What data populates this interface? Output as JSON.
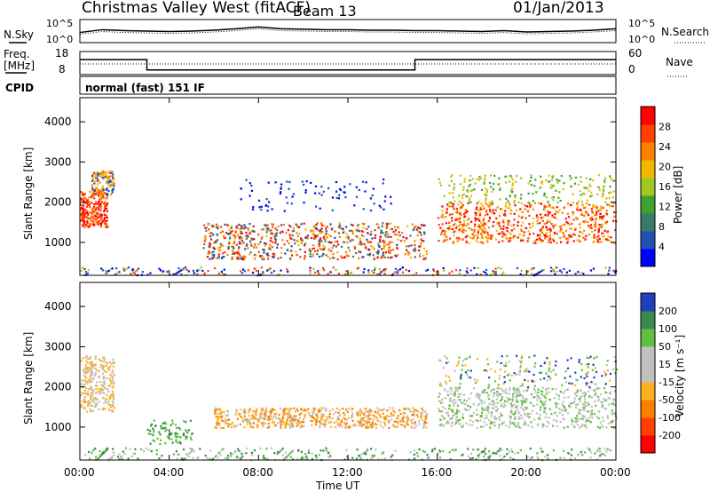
{
  "header": {
    "station": "Christmas Valley West (fitACF)",
    "beam": "Beam 13",
    "date": "01/Jan/2013"
  },
  "status": {
    "nsky_label": "N.Sky",
    "nsearch_label": "N.Search",
    "freq_label_line1": "Freq.",
    "freq_label_line2": "[MHz]",
    "nave_label": "Nave",
    "cpid_label": "CPID",
    "cpid_value": "normal (fast) 151 IF",
    "noise_ticks_left": [
      "10^5",
      "10^0"
    ],
    "noise_ticks_right": [
      "10^5",
      "10^0"
    ],
    "freq_ticks": [
      "18",
      "8"
    ],
    "nave_ticks": [
      "60",
      "0"
    ]
  },
  "x_ticks": [
    "00:00",
    "04:00",
    "08:00",
    "12:00",
    "16:00",
    "20:00",
    "00:00"
  ],
  "y_ticks": [
    "1000",
    "2000",
    "3000",
    "4000"
  ],
  "colors": {
    "power": [
      "#0000ff",
      "#1f4fb4",
      "#3a7a6a",
      "#41a030",
      "#a0c820",
      "#f0b800",
      "#ff8000",
      "#ff4000",
      "#ff0000"
    ],
    "velocity": [
      "#2040c0",
      "#3a8a50",
      "#60c040",
      "#c0c0c0",
      "#c0c0c0",
      "#ffb020",
      "#ff8000",
      "#ff4000",
      "#ff0000"
    ]
  },
  "chart_data": [
    {
      "type": "line",
      "title": "Noise (N.Sky / N.Search)",
      "x": "Time UT, hours 0-24",
      "series": [
        {
          "x": [
            0,
            1,
            2,
            3,
            4,
            5,
            6,
            7,
            8,
            9,
            10,
            11,
            12,
            13,
            14,
            15,
            16,
            17,
            18,
            19,
            20,
            21,
            22,
            23,
            24
          ],
          "values": [
            2.2,
            2.8,
            2.6,
            2.5,
            2.4,
            2.5,
            2.7,
            3.0,
            3.4,
            3.0,
            2.9,
            2.8,
            2.8,
            2.7,
            2.7,
            2.6,
            2.6,
            2.5,
            2.4,
            2.6,
            2.3,
            2.4,
            2.5,
            2.7,
            3.0
          ]
        }
      ],
      "ylim": [
        0,
        5
      ]
    },
    {
      "type": "line",
      "title": "Freq. [MHz] / Nave",
      "series": [
        {
          "x": [
            0,
            3,
            3,
            15,
            15,
            24
          ],
          "values": [
            14.5,
            14.5,
            10,
            10,
            14.5,
            14.5
          ]
        }
      ],
      "ylim": [
        8,
        18
      ]
    },
    {
      "type": "heatmap",
      "ylabel": "Slant Range [km]",
      "ylim": [
        180,
        4600
      ],
      "xlim": [
        0,
        24
      ],
      "colorbar": {
        "label": "Power [dB]",
        "ticks": [
          4,
          8,
          12,
          16,
          20,
          24,
          28
        ]
      }
    },
    {
      "type": "heatmap",
      "ylabel": "Slant Range [km]",
      "xlabel": "Time UT",
      "ylim": [
        180,
        4600
      ],
      "xlim": [
        0,
        24
      ],
      "colorbar": {
        "label": "Velocity [m s⁻¹]",
        "ticks": [
          200,
          100,
          50,
          15,
          -15,
          -50,
          -100,
          -200
        ]
      }
    }
  ]
}
